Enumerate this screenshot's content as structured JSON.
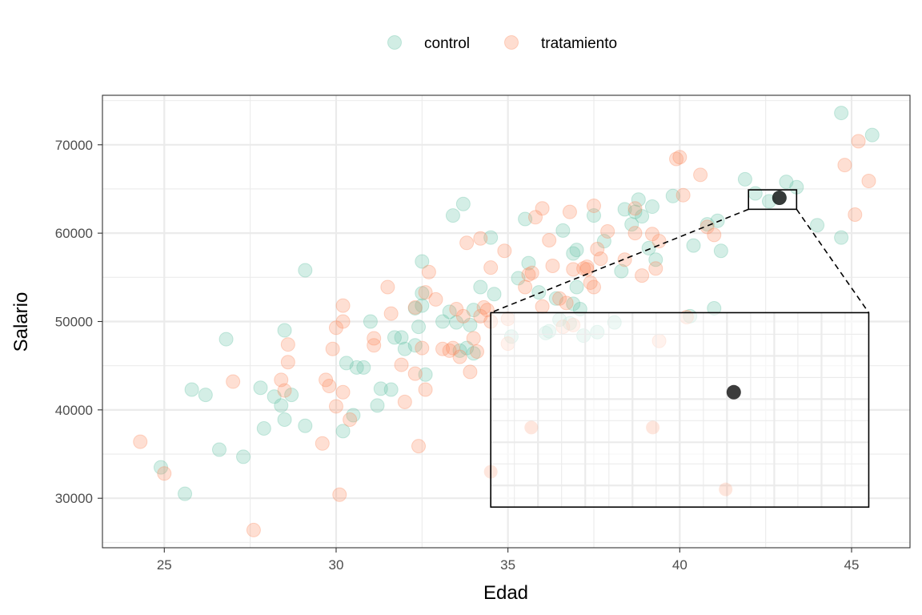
{
  "chart_data": {
    "type": "scatter",
    "title": "",
    "xlabel": "Edad",
    "ylabel": "Salario",
    "xlim": [
      23.2,
      46.7
    ],
    "ylim": [
      24400,
      75600
    ],
    "x_ticks": [
      25,
      30,
      35,
      40,
      45
    ],
    "y_ticks": [
      30000,
      40000,
      50000,
      60000,
      70000
    ],
    "x_tick_labels": [
      "25",
      "30",
      "35",
      "40",
      "45"
    ],
    "y_tick_labels": [
      "30000",
      "40000",
      "50000",
      "60000",
      "70000"
    ],
    "grid": true,
    "legend_position": "top",
    "legend": [
      "control",
      "tratamiento"
    ],
    "series": [
      {
        "name": "control",
        "color": "#66c2a5",
        "points": [
          [
            24.9,
            33500
          ],
          [
            25.6,
            30500
          ],
          [
            25.8,
            42300
          ],
          [
            26.2,
            41700
          ],
          [
            26.6,
            35500
          ],
          [
            26.8,
            48000
          ],
          [
            27.3,
            34700
          ],
          [
            27.8,
            42500
          ],
          [
            27.9,
            37900
          ],
          [
            28.2,
            41500
          ],
          [
            28.4,
            40500
          ],
          [
            28.5,
            38900
          ],
          [
            28.5,
            49000
          ],
          [
            28.7,
            41700
          ],
          [
            29.1,
            38200
          ],
          [
            29.1,
            55800
          ],
          [
            30.2,
            37600
          ],
          [
            30.3,
            45300
          ],
          [
            30.5,
            39400
          ],
          [
            30.6,
            44800
          ],
          [
            30.8,
            44800
          ],
          [
            31.0,
            50000
          ],
          [
            31.2,
            40500
          ],
          [
            31.3,
            42400
          ],
          [
            31.6,
            42300
          ],
          [
            31.7,
            48200
          ],
          [
            31.9,
            48200
          ],
          [
            32.0,
            46900
          ],
          [
            32.3,
            47300
          ],
          [
            32.3,
            51500
          ],
          [
            32.4,
            49400
          ],
          [
            32.5,
            51800
          ],
          [
            32.5,
            53200
          ],
          [
            32.5,
            56800
          ],
          [
            32.6,
            44000
          ],
          [
            33.1,
            50000
          ],
          [
            33.3,
            51100
          ],
          [
            33.4,
            62000
          ],
          [
            33.5,
            49900
          ],
          [
            33.6,
            46700
          ],
          [
            33.7,
            63300
          ],
          [
            33.8,
            47000
          ],
          [
            33.9,
            49600
          ],
          [
            34.0,
            46400
          ],
          [
            34.0,
            51300
          ],
          [
            34.2,
            53900
          ],
          [
            34.5,
            59500
          ],
          [
            34.6,
            53100
          ],
          [
            35.1,
            48300
          ],
          [
            35.3,
            54900
          ],
          [
            35.5,
            61600
          ],
          [
            35.6,
            56600
          ],
          [
            35.9,
            53300
          ],
          [
            36.1,
            48700
          ],
          [
            36.2,
            48900
          ],
          [
            36.4,
            52600
          ],
          [
            36.5,
            50200
          ],
          [
            36.6,
            60300
          ],
          [
            36.8,
            49800
          ],
          [
            36.9,
            52000
          ],
          [
            36.9,
            57700
          ],
          [
            37.0,
            53900
          ],
          [
            37.0,
            58100
          ],
          [
            37.1,
            51400
          ],
          [
            37.2,
            48400
          ],
          [
            37.5,
            62000
          ],
          [
            37.6,
            48800
          ],
          [
            37.8,
            59100
          ],
          [
            38.1,
            49900
          ],
          [
            38.3,
            55700
          ],
          [
            38.4,
            62700
          ],
          [
            38.6,
            61000
          ],
          [
            38.7,
            62400
          ],
          [
            38.8,
            63800
          ],
          [
            38.9,
            61900
          ],
          [
            39.1,
            58300
          ],
          [
            39.2,
            63000
          ],
          [
            39.3,
            57000
          ],
          [
            39.8,
            64200
          ],
          [
            40.3,
            50600
          ],
          [
            40.4,
            58600
          ],
          [
            40.8,
            61000
          ],
          [
            41.0,
            51500
          ],
          [
            41.1,
            61400
          ],
          [
            41.2,
            58000
          ],
          [
            41.9,
            66100
          ],
          [
            42.2,
            64500
          ],
          [
            42.6,
            63600
          ],
          [
            42.9,
            64000
          ],
          [
            43.1,
            65800
          ],
          [
            43.4,
            65200
          ],
          [
            44.0,
            60900
          ],
          [
            44.7,
            59500
          ],
          [
            44.7,
            73600
          ],
          [
            45.6,
            71100
          ]
        ]
      },
      {
        "name": "tratamiento",
        "color": "#fc8d62",
        "points": [
          [
            24.3,
            36400
          ],
          [
            25.0,
            32800
          ],
          [
            27.0,
            43200
          ],
          [
            27.6,
            26400
          ],
          [
            28.4,
            43400
          ],
          [
            28.5,
            42200
          ],
          [
            28.6,
            45400
          ],
          [
            28.6,
            47400
          ],
          [
            29.6,
            36200
          ],
          [
            29.7,
            43400
          ],
          [
            29.8,
            42700
          ],
          [
            29.9,
            46900
          ],
          [
            30.0,
            49300
          ],
          [
            30.0,
            40400
          ],
          [
            30.1,
            30400
          ],
          [
            30.2,
            42000
          ],
          [
            30.2,
            50000
          ],
          [
            30.2,
            51800
          ],
          [
            30.4,
            38900
          ],
          [
            31.1,
            47300
          ],
          [
            31.1,
            48100
          ],
          [
            31.5,
            53900
          ],
          [
            31.6,
            50900
          ],
          [
            31.9,
            45100
          ],
          [
            32.0,
            40900
          ],
          [
            32.3,
            44100
          ],
          [
            32.3,
            51600
          ],
          [
            32.4,
            35900
          ],
          [
            32.5,
            47000
          ],
          [
            32.6,
            42300
          ],
          [
            32.6,
            53300
          ],
          [
            32.7,
            55600
          ],
          [
            32.9,
            52500
          ],
          [
            33.1,
            46900
          ],
          [
            33.3,
            46700
          ],
          [
            33.4,
            47000
          ],
          [
            33.5,
            51400
          ],
          [
            33.6,
            46000
          ],
          [
            33.7,
            50600
          ],
          [
            33.8,
            58900
          ],
          [
            33.9,
            44300
          ],
          [
            34.0,
            48100
          ],
          [
            34.1,
            46600
          ],
          [
            34.2,
            50600
          ],
          [
            34.2,
            59400
          ],
          [
            34.3,
            51600
          ],
          [
            34.4,
            51300
          ],
          [
            34.5,
            50000
          ],
          [
            34.5,
            56100
          ],
          [
            34.9,
            58000
          ],
          [
            35.0,
            50300
          ],
          [
            35.0,
            47500
          ],
          [
            35.5,
            53900
          ],
          [
            35.6,
            55300
          ],
          [
            35.7,
            55500
          ],
          [
            35.8,
            61800
          ],
          [
            36.0,
            62800
          ],
          [
            36.0,
            51700
          ],
          [
            36.2,
            59200
          ],
          [
            36.3,
            56300
          ],
          [
            36.5,
            52600
          ],
          [
            36.6,
            49400
          ],
          [
            36.7,
            52100
          ],
          [
            36.8,
            62400
          ],
          [
            36.9,
            49600
          ],
          [
            36.9,
            55900
          ],
          [
            37.2,
            56000
          ],
          [
            37.3,
            55900
          ],
          [
            37.3,
            56200
          ],
          [
            37.4,
            54400
          ],
          [
            37.5,
            53900
          ],
          [
            37.5,
            63100
          ],
          [
            37.6,
            58200
          ],
          [
            37.7,
            57100
          ],
          [
            37.9,
            60200
          ],
          [
            38.4,
            57000
          ],
          [
            38.7,
            60000
          ],
          [
            38.7,
            62800
          ],
          [
            38.9,
            55200
          ],
          [
            39.2,
            59900
          ],
          [
            39.3,
            56000
          ],
          [
            39.4,
            47800
          ],
          [
            39.4,
            59100
          ],
          [
            39.9,
            68400
          ],
          [
            40.0,
            68600
          ],
          [
            40.1,
            64300
          ],
          [
            40.2,
            50500
          ],
          [
            40.6,
            66600
          ],
          [
            40.8,
            60700
          ],
          [
            41.0,
            59800
          ],
          [
            44.8,
            67700
          ],
          [
            45.1,
            62100
          ],
          [
            45.2,
            70400
          ],
          [
            45.5,
            65900
          ]
        ]
      }
    ],
    "highlight_point": [
      42.9,
      64000
    ],
    "zoom_box": [
      42.0,
      43.4,
      62700,
      64900
    ],
    "inset_box": [
      34.5,
      45.5,
      29000,
      51000
    ]
  }
}
